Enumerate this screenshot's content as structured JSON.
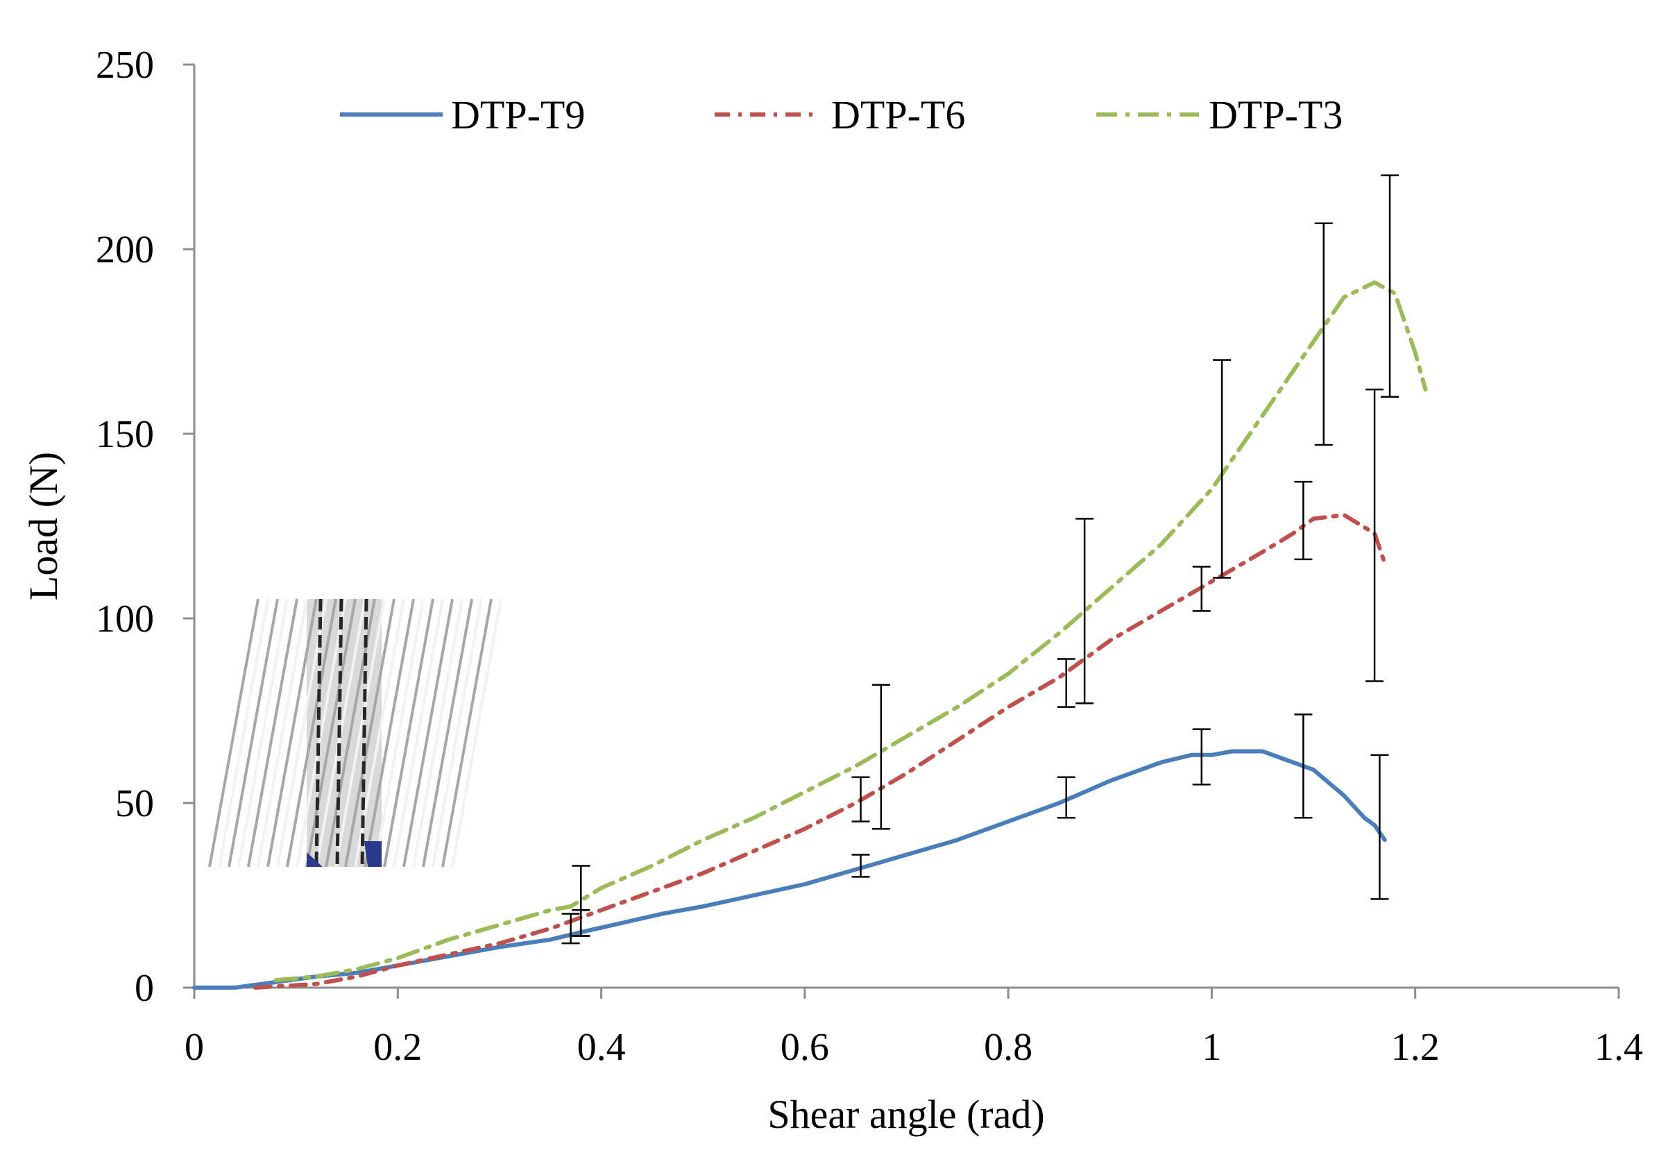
{
  "chart_data": {
    "type": "line",
    "xlabel": "Shear angle (rad)",
    "ylabel": "Load (N)",
    "xlim": [
      0,
      1.4
    ],
    "ylim": [
      0,
      250
    ],
    "xticks": [
      "0",
      "0.2",
      "0.4",
      "0.6",
      "0.8",
      "1",
      "1.2",
      "1.4"
    ],
    "xtick_values": [
      0,
      0.2,
      0.4,
      0.6,
      0.8,
      1.0,
      1.2,
      1.4
    ],
    "yticks": [
      "0",
      "50",
      "100",
      "150",
      "200",
      "250"
    ],
    "ytick_values": [
      0,
      50,
      100,
      150,
      200,
      250
    ],
    "grid": false,
    "legend_position": "top",
    "series": [
      {
        "name": "DTP-T9",
        "color": "#4a7ebb",
        "style": "solid",
        "x": [
          0,
          0.04,
          0.08,
          0.12,
          0.16,
          0.2,
          0.25,
          0.3,
          0.35,
          0.38,
          0.42,
          0.46,
          0.5,
          0.55,
          0.6,
          0.65,
          0.7,
          0.75,
          0.8,
          0.85,
          0.9,
          0.95,
          0.98,
          1.0,
          1.02,
          1.05,
          1.08,
          1.1,
          1.13,
          1.15,
          1.16,
          1.17
        ],
        "y": [
          0,
          0,
          1.5,
          3,
          4,
          6,
          8.5,
          11,
          13,
          15,
          17.5,
          20,
          22,
          25,
          28,
          32,
          36,
          40,
          45,
          50,
          56,
          61,
          63,
          63,
          64,
          64,
          61,
          59,
          52,
          46,
          44,
          40
        ]
      },
      {
        "name": "DTP-T6",
        "color": "#c0504d",
        "style": "dash-dot",
        "x": [
          0.06,
          0.12,
          0.16,
          0.2,
          0.25,
          0.3,
          0.35,
          0.4,
          0.45,
          0.5,
          0.55,
          0.6,
          0.65,
          0.7,
          0.75,
          0.8,
          0.85,
          0.9,
          0.95,
          1.0,
          1.05,
          1.08,
          1.1,
          1.13,
          1.16,
          1.17
        ],
        "y": [
          0,
          1,
          3,
          6,
          9,
          12,
          16,
          21,
          26,
          31,
          37,
          43,
          50,
          58,
          67,
          76,
          84,
          94,
          102,
          110,
          118,
          123,
          127,
          128,
          123,
          115
        ]
      },
      {
        "name": "DTP-T3",
        "color": "#9bbb59",
        "style": "long-dash-dot",
        "x": [
          0.08,
          0.12,
          0.16,
          0.2,
          0.25,
          0.3,
          0.35,
          0.37,
          0.4,
          0.45,
          0.5,
          0.55,
          0.6,
          0.65,
          0.7,
          0.75,
          0.8,
          0.85,
          0.9,
          0.95,
          1.0,
          1.05,
          1.1,
          1.13,
          1.16,
          1.18,
          1.2,
          1.21
        ],
        "y": [
          2,
          3,
          5,
          8,
          13,
          17,
          21,
          22,
          27,
          33,
          40,
          46,
          53,
          60,
          68,
          76,
          85,
          96,
          108,
          120,
          135,
          155,
          175,
          187,
          191,
          188,
          172,
          162
        ]
      }
    ],
    "error_bars": [
      {
        "series": "DTP-T9",
        "x": 0.37,
        "low": 12,
        "high": 20
      },
      {
        "series": "DTP-T9",
        "x": 0.655,
        "low": 30,
        "high": 36
      },
      {
        "series": "DTP-T9",
        "x": 0.857,
        "low": 46,
        "high": 57
      },
      {
        "series": "DTP-T9",
        "x": 0.99,
        "low": 55,
        "high": 70
      },
      {
        "series": "DTP-T9",
        "x": 1.09,
        "low": 46,
        "high": 74
      },
      {
        "series": "DTP-T9",
        "x": 1.165,
        "low": 24,
        "high": 63
      },
      {
        "series": "DTP-T6",
        "x": 0.38,
        "low": 14,
        "high": 21
      },
      {
        "series": "DTP-T6",
        "x": 0.655,
        "low": 45,
        "high": 57
      },
      {
        "series": "DTP-T6",
        "x": 0.857,
        "low": 76,
        "high": 89
      },
      {
        "series": "DTP-T6",
        "x": 0.99,
        "low": 102,
        "high": 114
      },
      {
        "series": "DTP-T6",
        "x": 1.09,
        "low": 116,
        "high": 137
      },
      {
        "series": "DTP-T6",
        "x": 1.16,
        "low": 83,
        "high": 162
      },
      {
        "series": "DTP-T3",
        "x": 0.38,
        "low": 14,
        "high": 33
      },
      {
        "series": "DTP-T3",
        "x": 0.675,
        "low": 43,
        "high": 82
      },
      {
        "series": "DTP-T3",
        "x": 0.875,
        "low": 77,
        "high": 127
      },
      {
        "series": "DTP-T3",
        "x": 1.01,
        "low": 111,
        "high": 170
      },
      {
        "series": "DTP-T3",
        "x": 1.11,
        "low": 147,
        "high": 207
      },
      {
        "series": "DTP-T3",
        "x": 1.175,
        "low": 160,
        "high": 220
      }
    ]
  }
}
